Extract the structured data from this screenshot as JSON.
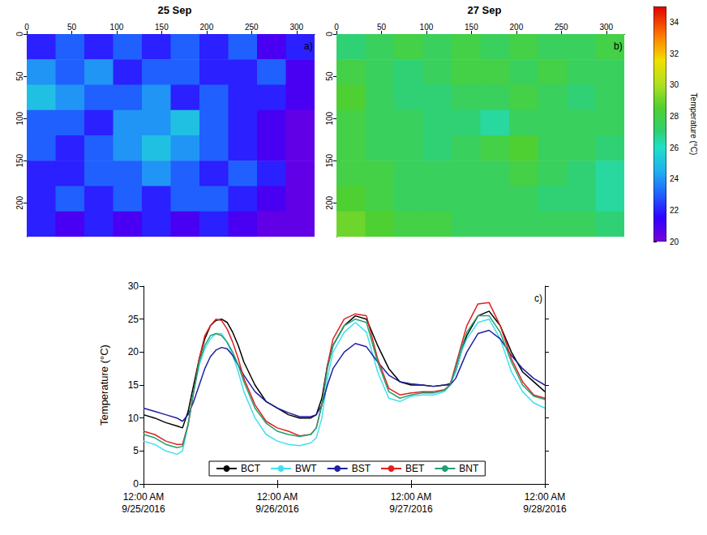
{
  "chart_data": [
    {
      "type": "heatmap",
      "title": "25 Sep",
      "panel_label": "a)",
      "xlim": [
        0,
        320
      ],
      "xticks": [
        0,
        50,
        100,
        150,
        200,
        250,
        300
      ],
      "ylim": [
        0,
        240
      ],
      "yticks": [
        0,
        50,
        100,
        150,
        200
      ],
      "x_edges": [
        0,
        32,
        64,
        96,
        128,
        160,
        192,
        224,
        256,
        288,
        320
      ],
      "y_edges": [
        0,
        30,
        60,
        90,
        120,
        150,
        180,
        210,
        240
      ],
      "cells": [
        [
          22,
          23,
          22,
          23,
          22,
          23,
          22,
          23,
          21,
          22
        ],
        [
          24,
          23,
          24,
          22,
          23,
          23,
          22,
          22,
          23,
          21
        ],
        [
          25,
          24,
          23,
          23,
          24,
          22,
          23,
          22,
          22,
          21
        ],
        [
          23,
          23,
          22,
          24,
          24,
          25,
          23,
          22,
          21,
          20.5
        ],
        [
          23,
          22,
          23,
          24,
          25,
          24,
          23,
          22,
          21,
          20.5
        ],
        [
          22,
          22,
          23,
          23,
          24,
          23,
          22,
          23,
          22,
          20.5
        ],
        [
          22,
          23,
          22,
          23,
          22,
          23,
          23,
          22,
          21,
          20.5
        ],
        [
          22,
          21,
          22,
          21,
          22,
          21,
          22,
          21,
          20.5,
          20.5
        ]
      ]
    },
    {
      "type": "heatmap",
      "title": "27 Sep",
      "panel_label": "b)",
      "xlim": [
        0,
        320
      ],
      "xticks": [
        0,
        50,
        100,
        150,
        200,
        250,
        300
      ],
      "ylim": [
        0,
        240
      ],
      "yticks": [
        0,
        50,
        100,
        150,
        200
      ],
      "x_edges": [
        0,
        32,
        64,
        96,
        128,
        160,
        192,
        224,
        256,
        288,
        320
      ],
      "y_edges": [
        0,
        30,
        60,
        90,
        120,
        150,
        180,
        210,
        240
      ],
      "cells": [
        [
          27,
          27.5,
          28,
          27.5,
          28,
          27.5,
          28,
          27.5,
          27.5,
          28
        ],
        [
          28,
          27.5,
          27,
          27.5,
          28,
          28,
          27.5,
          28,
          27.5,
          27.5
        ],
        [
          28.5,
          27.5,
          27,
          27,
          27.5,
          27.5,
          28,
          27.5,
          27,
          27.5
        ],
        [
          28,
          27.5,
          27.5,
          27,
          27,
          26.5,
          27.5,
          27.5,
          27.5,
          27.5
        ],
        [
          28,
          27.5,
          27.5,
          27,
          27.5,
          28,
          28.5,
          27.5,
          27.5,
          27
        ],
        [
          28,
          28,
          27.5,
          27.5,
          27.5,
          27.5,
          28,
          27.5,
          27,
          26.5
        ],
        [
          28.5,
          28,
          27.5,
          27.5,
          27.5,
          27.5,
          27.5,
          27,
          27,
          26.5
        ],
        [
          29,
          28.5,
          28,
          28,
          27.5,
          27.5,
          27.5,
          27.5,
          27.5,
          27
        ]
      ],
      "colorbar": {
        "label": "Temperature (°C)",
        "range": [
          20,
          35
        ],
        "ticks": [
          20,
          22,
          24,
          26,
          28,
          30,
          32,
          34
        ]
      }
    },
    {
      "type": "line",
      "panel_label": "c)",
      "ylabel": "Temperature (°C)",
      "legend": "bottom",
      "xlim": [
        "2016-09-25 00:00",
        "2016-09-28 00:00"
      ],
      "xticks": [
        {
          "value": "2016-09-25 00:00",
          "label": "12:00 AM\n9/25/2016"
        },
        {
          "value": "2016-09-26 00:00",
          "label": "12:00 AM\n9/26/2016"
        },
        {
          "value": "2016-09-27 00:00",
          "label": "12:00 AM\n9/27/2016"
        },
        {
          "value": "2016-09-28 00:00",
          "label": "12:00 AM\n9/28/2016"
        }
      ],
      "ylim": [
        0,
        30
      ],
      "yticks": [
        0,
        5,
        10,
        15,
        20,
        25,
        30
      ],
      "x": [
        "2016-09-25 00:00",
        "2016-09-25 02:00",
        "2016-09-25 04:00",
        "2016-09-25 06:00",
        "2016-09-25 07:00",
        "2016-09-25 08:00",
        "2016-09-25 09:00",
        "2016-09-25 10:00",
        "2016-09-25 11:00",
        "2016-09-25 12:00",
        "2016-09-25 13:00",
        "2016-09-25 14:00",
        "2016-09-25 15:00",
        "2016-09-25 16:00",
        "2016-09-25 17:00",
        "2016-09-25 18:00",
        "2016-09-25 20:00",
        "2016-09-25 22:00",
        "2016-09-26 00:00",
        "2016-09-26 02:00",
        "2016-09-26 04:00",
        "2016-09-26 06:00",
        "2016-09-26 07:00",
        "2016-09-26 08:00",
        "2016-09-26 09:00",
        "2016-09-26 10:00",
        "2016-09-26 12:00",
        "2016-09-26 14:00",
        "2016-09-26 16:00",
        "2016-09-26 18:00",
        "2016-09-26 20:00",
        "2016-09-26 22:00",
        "2016-09-27 00:00",
        "2016-09-27 02:00",
        "2016-09-27 04:00",
        "2016-09-27 06:00",
        "2016-09-27 07:00",
        "2016-09-27 08:00",
        "2016-09-27 09:00",
        "2016-09-27 10:00",
        "2016-09-27 12:00",
        "2016-09-27 14:00",
        "2016-09-27 16:00",
        "2016-09-27 18:00",
        "2016-09-27 20:00",
        "2016-09-27 22:00",
        "2016-09-28 00:00"
      ],
      "series": [
        {
          "name": "BCT",
          "color": "#000000",
          "values": [
            10.5,
            10,
            9.3,
            8.8,
            8.5,
            11,
            15,
            19,
            22,
            24,
            24.8,
            25,
            24.5,
            23,
            21,
            18.5,
            15,
            12.5,
            11.5,
            10.5,
            10,
            10,
            10.5,
            13,
            18,
            21,
            24,
            25.5,
            25,
            21,
            17.5,
            15.5,
            15,
            15,
            14.8,
            15,
            15.2,
            17,
            20,
            22.5,
            25.5,
            26.2,
            24,
            20,
            17,
            15.5,
            14
          ]
        },
        {
          "name": "BWT",
          "color": "#40e0f0",
          "values": [
            6.5,
            6,
            5,
            4.5,
            5,
            9,
            14,
            18,
            20.5,
            22,
            22.8,
            22.8,
            21.5,
            19.5,
            17,
            14,
            10,
            7.5,
            6.5,
            6,
            5.8,
            6.2,
            7,
            10,
            16,
            20,
            23,
            24.5,
            23,
            17,
            13,
            12.5,
            13.3,
            13.5,
            13.5,
            14,
            15,
            17,
            20,
            22,
            24.5,
            25,
            22,
            17,
            14,
            12.3,
            11.5
          ]
        },
        {
          "name": "BST",
          "color": "#2020a0",
          "values": [
            11.5,
            11,
            10.5,
            10,
            9.5,
            10.5,
            12.5,
            15,
            17.5,
            19.3,
            20.3,
            20.7,
            20.5,
            19.5,
            18,
            16.5,
            14,
            12.5,
            11.5,
            10.8,
            10.2,
            10.2,
            10.5,
            12,
            15,
            17.5,
            20,
            21.3,
            20.8,
            18.5,
            16.5,
            15.5,
            15.2,
            15,
            14.8,
            15,
            15,
            16,
            18,
            20,
            22.8,
            23.3,
            22,
            19.5,
            17.5,
            16,
            15
          ]
        },
        {
          "name": "BET",
          "color": "#e02020",
          "values": [
            8,
            7.5,
            6.5,
            6,
            6,
            9,
            14,
            19,
            22.5,
            24,
            25,
            24.8,
            23.5,
            21.5,
            19,
            16,
            12,
            9.5,
            8.5,
            8,
            7.3,
            7.5,
            8.5,
            12,
            18,
            22,
            25,
            25.8,
            25.5,
            19,
            14.5,
            13.5,
            13.8,
            14,
            14,
            14.3,
            15,
            18,
            21,
            24,
            27.3,
            27.5,
            24,
            19,
            15.5,
            13.5,
            13
          ]
        },
        {
          "name": "BNT",
          "color": "#20a070",
          "values": [
            7.5,
            7,
            6,
            5.5,
            5.7,
            9,
            14,
            18.5,
            21,
            22.5,
            22.8,
            22.5,
            21.5,
            20,
            18,
            15.5,
            11.5,
            9.2,
            8,
            7.5,
            7.2,
            7.5,
            8.5,
            12,
            17.5,
            21,
            24,
            25,
            24.5,
            18.5,
            14,
            13,
            13.5,
            13.8,
            13.8,
            14.2,
            15,
            17.5,
            20.5,
            23,
            25.5,
            25.5,
            23,
            18.5,
            15,
            13.3,
            12.8
          ]
        }
      ]
    }
  ]
}
